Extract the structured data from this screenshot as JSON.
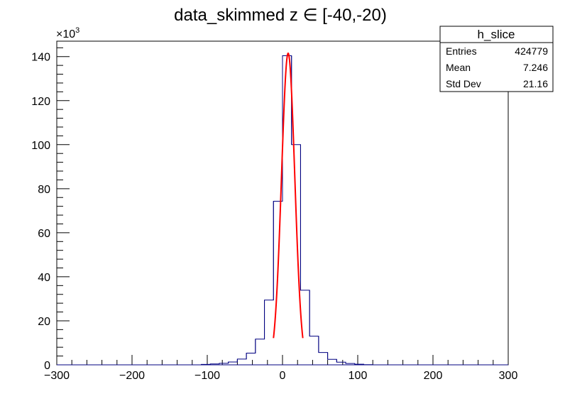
{
  "chart_data": {
    "type": "bar",
    "title": "data_skimmed z  ∈ [-40,-20)",
    "xlabel": "",
    "ylabel": "",
    "xlim": [
      -300,
      300
    ],
    "ylim": [
      0,
      147000
    ],
    "y_multiplier_label": "×10",
    "y_multiplier_exp": "3",
    "x_ticks": [
      -300,
      -200,
      -100,
      0,
      100,
      200,
      300
    ],
    "x_tick_labels": [
      "−300",
      "−200",
      "−100",
      "0",
      "100",
      "200",
      "300"
    ],
    "y_ticks": [
      0,
      20000,
      40000,
      60000,
      80000,
      100000,
      120000,
      140000
    ],
    "y_tick_labels": [
      "0",
      "20",
      "40",
      "60",
      "80",
      "100",
      "120",
      "140"
    ],
    "bin_width": 12,
    "bins": [
      {
        "x0": -108,
        "count": 200
      },
      {
        "x0": -96,
        "count": 400
      },
      {
        "x0": -84,
        "count": 700
      },
      {
        "x0": -72,
        "count": 1300
      },
      {
        "x0": -60,
        "count": 2600
      },
      {
        "x0": -48,
        "count": 5300
      },
      {
        "x0": -36,
        "count": 11700
      },
      {
        "x0": -24,
        "count": 29400
      },
      {
        "x0": -12,
        "count": 74300
      },
      {
        "x0": 0,
        "count": 140400
      },
      {
        "x0": 12,
        "count": 100000
      },
      {
        "x0": 24,
        "count": 33900
      },
      {
        "x0": 36,
        "count": 13000
      },
      {
        "x0": 48,
        "count": 5600
      },
      {
        "x0": 60,
        "count": 2500
      },
      {
        "x0": 72,
        "count": 1200
      },
      {
        "x0": 84,
        "count": 600
      },
      {
        "x0": 96,
        "count": 300
      },
      {
        "x0": 108,
        "count": 100
      }
    ],
    "fit": {
      "type": "gaussian",
      "amplitude": 141500,
      "mean": 7.5,
      "sigma": 8.8,
      "range": [
        -12,
        27
      ],
      "color": "#ff0000"
    },
    "hist_color": "#000080"
  },
  "stats_box": {
    "name": "h_slice",
    "rows": [
      {
        "label": "Entries",
        "value": "424779"
      },
      {
        "label": "Mean",
        "value": "7.246"
      },
      {
        "label": "Std Dev",
        "value": "21.16"
      }
    ]
  }
}
